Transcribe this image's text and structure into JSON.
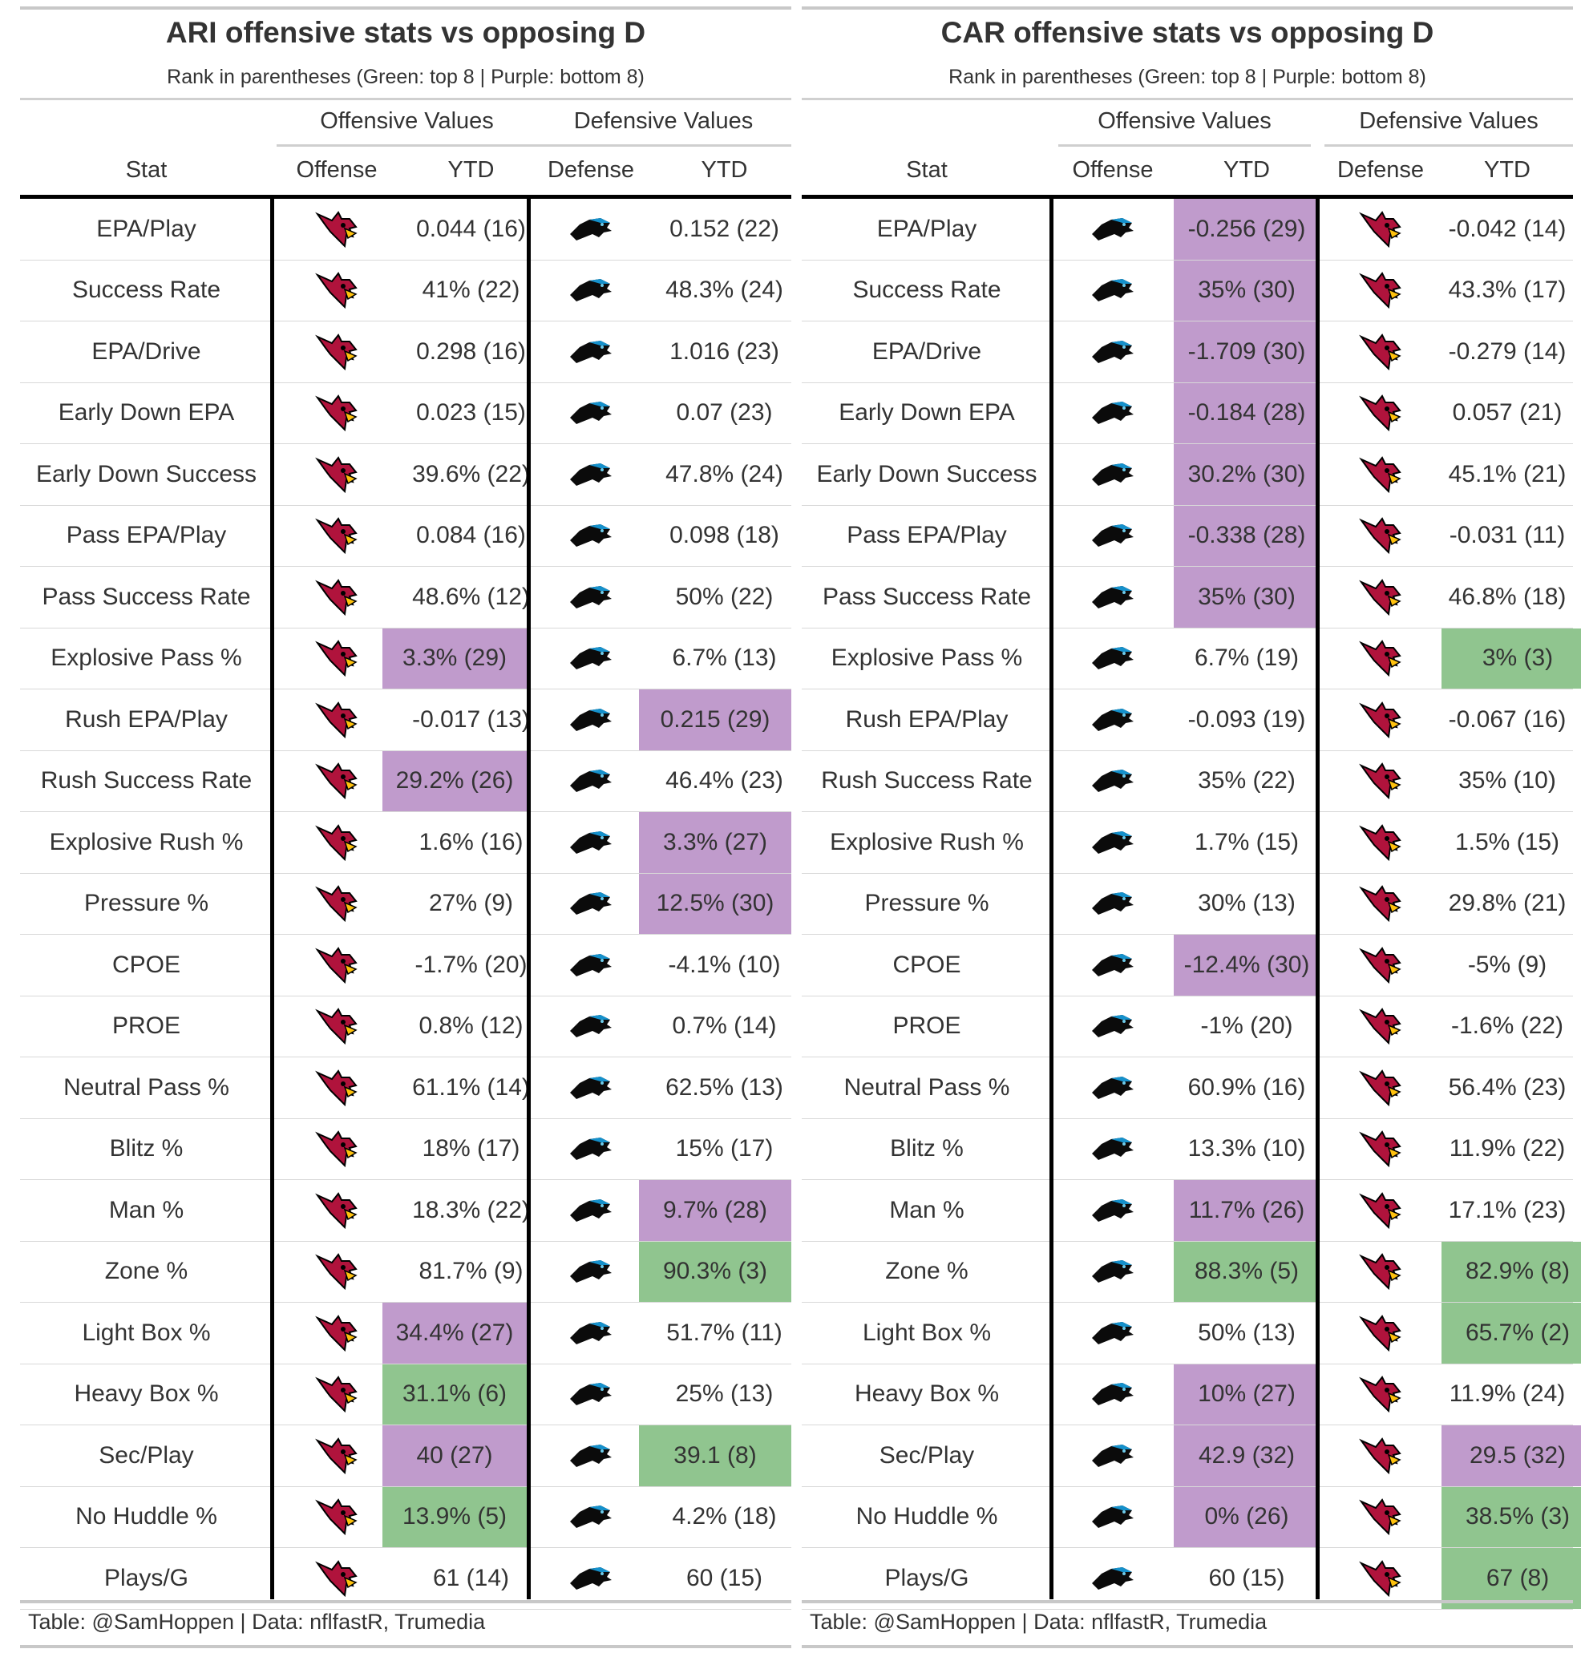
{
  "colors": {
    "green": "#90c58f",
    "purple": "#c09bcc",
    "cardinal": "#b0133c",
    "panther": "#0b0b0b",
    "panther_blue": "#1591cc"
  },
  "column_labels": {
    "stat": "Stat",
    "offense": "Offense",
    "defense": "Defense",
    "ytd": "YTD",
    "offensive_values": "Offensive Values",
    "defensive_values": "Defensive Values"
  },
  "subtitle": "Rank in parentheses (Green: top 8 | Purple: bottom 8)",
  "source": "Table: @SamHoppen | Data: nflfastR, Trumedia",
  "stats": [
    "EPA/Play",
    "Success Rate",
    "EPA/Drive",
    "Early Down EPA",
    "Early Down Success",
    "Pass EPA/Play",
    "Pass Success Rate",
    "Explosive Pass %",
    "Rush EPA/Play",
    "Rush Success Rate",
    "Explosive Rush %",
    "Pressure %",
    "CPOE",
    "PROE",
    "Neutral Pass %",
    "Blitz %",
    "Man %",
    "Zone %",
    "Light Box %",
    "Heavy Box %",
    "Sec/Play",
    "No Huddle %",
    "Plays/G"
  ],
  "tables": [
    {
      "title": "ARI offensive stats vs opposing D",
      "offense_logo": "cardinals-logo",
      "defense_logo": "panthers-logo",
      "off_ytd": [
        "0.044 (16)",
        "41% (22)",
        "0.298 (16)",
        "0.023 (15)",
        "39.6% (22)",
        "0.084 (16)",
        "48.6% (12)",
        "3.3% (29)",
        "-0.017 (13)",
        "29.2% (26)",
        "1.6% (16)",
        "27% (9)",
        "-1.7% (20)",
        "0.8% (12)",
        "61.1% (14)",
        "18% (17)",
        "18.3% (22)",
        "81.7% (9)",
        "34.4% (27)",
        "31.1% (6)",
        "40 (27)",
        "13.9% (5)",
        "61 (14)"
      ],
      "off_hl": [
        "",
        "",
        "",
        "",
        "",
        "",
        "",
        "purple",
        "",
        "purple",
        "",
        "",
        "",
        "",
        "",
        "",
        "",
        "",
        "purple",
        "green",
        "purple",
        "green",
        ""
      ],
      "def_ytd": [
        "0.152 (22)",
        "48.3% (24)",
        "1.016 (23)",
        "0.07 (23)",
        "47.8% (24)",
        "0.098 (18)",
        "50% (22)",
        "6.7% (13)",
        "0.215 (29)",
        "46.4% (23)",
        "3.3% (27)",
        "12.5% (30)",
        "-4.1% (10)",
        "0.7% (14)",
        "62.5% (13)",
        "15% (17)",
        "9.7% (28)",
        "90.3% (3)",
        "51.7% (11)",
        "25% (13)",
        "39.1 (8)",
        "4.2% (18)",
        "60 (15)"
      ],
      "def_hl": [
        "",
        "",
        "",
        "",
        "",
        "",
        "",
        "",
        "purple",
        "",
        "purple",
        "purple",
        "",
        "",
        "",
        "",
        "purple",
        "green",
        "",
        "",
        "green",
        "",
        ""
      ]
    },
    {
      "title": "CAR offensive stats vs opposing D",
      "offense_logo": "panthers-logo",
      "defense_logo": "cardinals-logo",
      "off_ytd": [
        "-0.256 (29)",
        "35% (30)",
        "-1.709 (30)",
        "-0.184 (28)",
        "30.2% (30)",
        "-0.338 (28)",
        "35% (30)",
        "6.7% (19)",
        "-0.093 (19)",
        "35% (22)",
        "1.7% (15)",
        "30% (13)",
        "-12.4% (30)",
        "-1% (20)",
        "60.9% (16)",
        "13.3% (10)",
        "11.7% (26)",
        "88.3% (5)",
        "50% (13)",
        "10% (27)",
        "42.9 (32)",
        "0% (26)",
        "60 (15)"
      ],
      "off_hl": [
        "purple",
        "purple",
        "purple",
        "purple",
        "purple",
        "purple",
        "purple",
        "",
        "",
        "",
        "",
        "",
        "purple",
        "",
        "",
        "",
        "purple",
        "green",
        "",
        "purple",
        "purple",
        "purple",
        ""
      ],
      "def_ytd": [
        "-0.042 (14)",
        "43.3% (17)",
        "-0.279 (14)",
        "0.057 (21)",
        "45.1% (21)",
        "-0.031 (11)",
        "46.8% (18)",
        "3% (3)",
        "-0.067 (16)",
        "35% (10)",
        "1.5% (15)",
        "29.8% (21)",
        "-5% (9)",
        "-1.6% (22)",
        "56.4% (23)",
        "11.9% (22)",
        "17.1% (23)",
        "82.9% (8)",
        "65.7% (2)",
        "11.9% (24)",
        "29.5 (32)",
        "38.5% (3)",
        "67 (8)"
      ],
      "def_hl": [
        "",
        "",
        "",
        "",
        "",
        "",
        "",
        "green",
        "",
        "",
        "",
        "",
        "",
        "",
        "",
        "",
        "",
        "green",
        "green",
        "",
        "purple",
        "green",
        "green"
      ]
    }
  ]
}
